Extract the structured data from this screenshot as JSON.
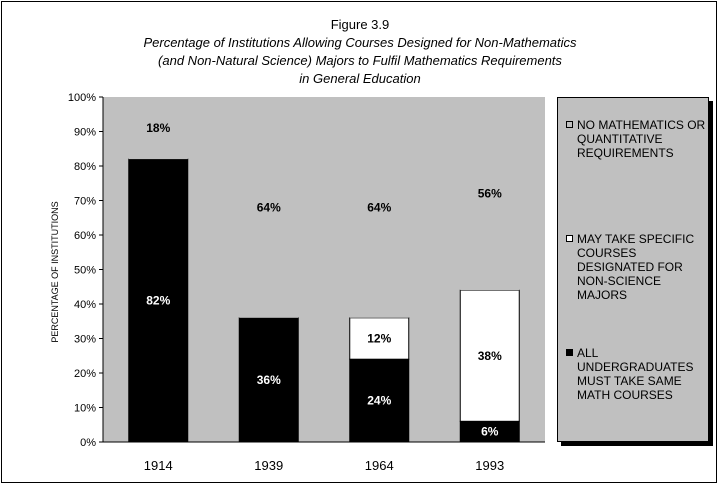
{
  "figure": {
    "label": "Figure 3.9",
    "title_lines": [
      "Percentage of Institutions Allowing Courses Designed for Non-Mathematics",
      "(and Non-Natural Science) Majors to Fulfil Mathematics Requirements",
      "in General Education"
    ]
  },
  "chart_data": {
    "type": "bar",
    "stacked": true,
    "categories": [
      "1914",
      "1939",
      "1964",
      "1993"
    ],
    "series": [
      {
        "name": "ALL UNDERGRADUATES MUST TAKE SAME MATH COURSES",
        "values": [
          82,
          36,
          24,
          6
        ],
        "color": "#000000",
        "label_color": "#ffffff"
      },
      {
        "name": "MAY TAKE SPECIFIC COURSES DESIGNATED FOR NON-SCIENCE MAJORS",
        "values": [
          0,
          0,
          12,
          38
        ],
        "color": "#ffffff",
        "label_color": "#000000"
      },
      {
        "name": "NO MATHEMATICS OR QUANTITATIVE REQUIREMENTS",
        "values": [
          18,
          64,
          64,
          56
        ],
        "color": "#c0c0c0",
        "label_color": "#000000"
      }
    ],
    "data_labels": [
      [
        "82%",
        "36%",
        "24%",
        "6%"
      ],
      [
        "",
        "",
        "12%",
        "38%"
      ],
      [
        "18%",
        "64%",
        "64%",
        "56%"
      ]
    ],
    "ylabel": "PERCENTAGE OF INSTITUTIONS",
    "xlabel": "",
    "ylim": [
      0,
      100
    ],
    "yticks": [
      "0%",
      "10%",
      "20%",
      "30%",
      "40%",
      "50%",
      "60%",
      "70%",
      "80%",
      "90%",
      "100%"
    ],
    "plot_background": "#c0c0c0",
    "grid": false,
    "legend_position": "right"
  },
  "legend": {
    "items": [
      {
        "label": "NO MATHEMATICS OR QUANTITATIVE REQUIREMENTS",
        "color": "#c0c0c0"
      },
      {
        "label": "MAY TAKE SPECIFIC COURSES DESIGNATED FOR NON-SCIENCE MAJORS",
        "color": "#ffffff"
      },
      {
        "label": "ALL UNDERGRADUATES MUST TAKE SAME MATH COURSES",
        "color": "#000000"
      }
    ]
  }
}
